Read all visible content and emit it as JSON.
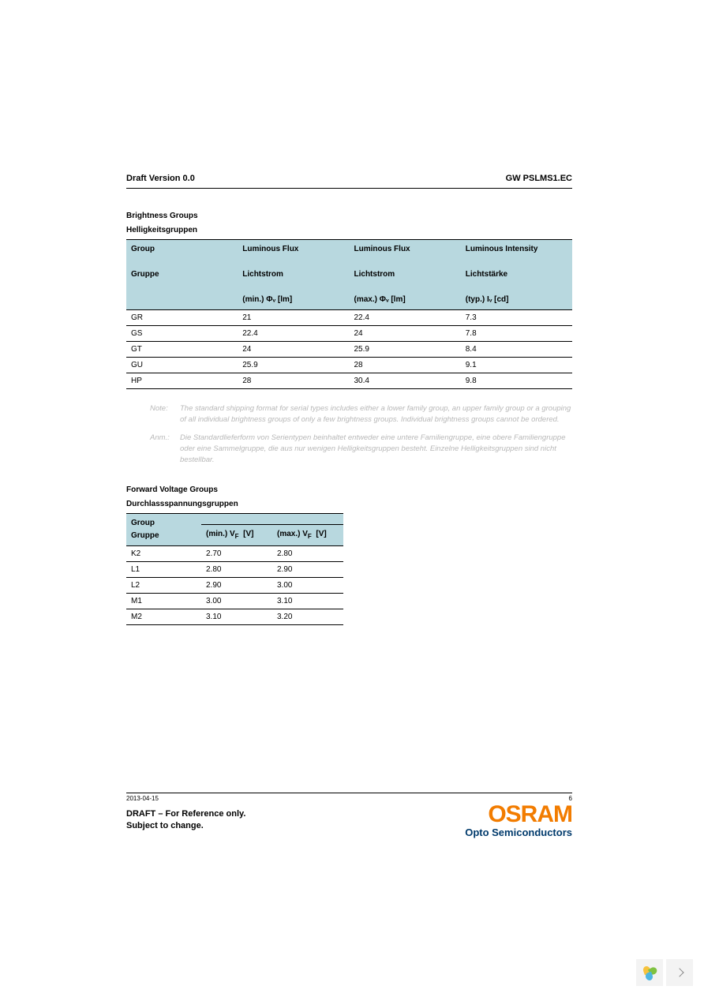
{
  "header": {
    "left": "Draft Version 0.0",
    "right": "GW PSLMS1.EC"
  },
  "brightness_section": {
    "title_en": "Brightness Groups",
    "title_de": "Helligkeitsgruppen",
    "columns": [
      {
        "h1": "Group",
        "h2": "Gruppe",
        "h3": ""
      },
      {
        "h1": "Luminous Flux",
        "h2": "Lichtstrom",
        "h3": "(min.) Φᵥ   [lm]"
      },
      {
        "h1": "Luminous Flux",
        "h2": "Lichtstrom",
        "h3": "(max.) Φᵥ   [lm]"
      },
      {
        "h1": "Luminous Intensity",
        "h2": "Lichtstärke",
        "h3": "(typ.) Iᵥ   [cd]"
      }
    ],
    "rows": [
      {
        "group": "GR",
        "min": "21",
        "max": "22.4",
        "int": "7.3"
      },
      {
        "group": "GS",
        "min": "22.4",
        "max": "24",
        "int": "7.8"
      },
      {
        "group": "GT",
        "min": "24",
        "max": "25.9",
        "int": "8.4"
      },
      {
        "group": "GU",
        "min": "25.9",
        "max": "28",
        "int": "9.1"
      },
      {
        "group": "HP",
        "min": "28",
        "max": "30.4",
        "int": "9.8"
      }
    ]
  },
  "notes": {
    "en_label": "Note:",
    "en_text": "The standard shipping format for serial types includes either a lower family group, an upper family group or a grouping of all individual brightness groups of only a few brightness groups. Individual brightness groups cannot be ordered.",
    "de_label": "Anm.:",
    "de_text": "Die Standardlieferform von Serientypen beinhaltet entweder eine untere Familiengruppe, eine obere Familiengruppe oder eine Sammelgruppe, die aus nur wenigen Helligkeitsgruppen besteht. Einzelne Helligkeitsgruppen sind nicht bestellbar."
  },
  "voltage_section": {
    "title_en": "Forward Voltage Groups",
    "title_de": "Durchlassspannungsgruppen",
    "columns": [
      {
        "h1": "Group",
        "h2": "Gruppe"
      },
      {
        "h1": "(min.) V",
        "unit": "[V]"
      },
      {
        "h1": "(max.) V",
        "unit": "[V]"
      }
    ],
    "rows": [
      {
        "group": "K2",
        "min": "2.70",
        "max": "2.80"
      },
      {
        "group": "L1",
        "min": "2.80",
        "max": "2.90"
      },
      {
        "group": "L2",
        "min": "2.90",
        "max": "3.00"
      },
      {
        "group": "M1",
        "min": "3.00",
        "max": "3.10"
      },
      {
        "group": "M2",
        "min": "3.10",
        "max": "3.20"
      }
    ]
  },
  "footer": {
    "date": "2013-04-15",
    "page": "6",
    "draft_line1": "DRAFT – For Reference only.",
    "draft_line2": "Subject to change.",
    "logo_main": "OSRAM",
    "logo_sub": "Opto Semiconductors"
  }
}
